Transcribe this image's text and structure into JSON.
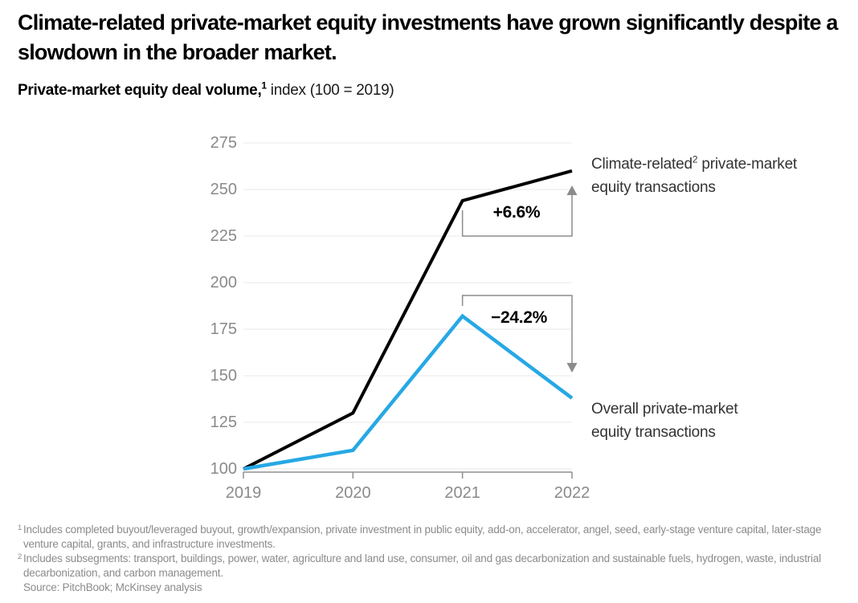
{
  "header": {
    "title": "Climate-related private-market equity investments have grown significantly despite a slowdown in the broader market.",
    "subtitle_bold": "Private-market equity deal volume,",
    "subtitle_sup": "1",
    "subtitle_rest": "index (100 = 2019)"
  },
  "chart_data": {
    "type": "line",
    "title": "Private-market equity deal volume, index (100 = 2019)",
    "categories": [
      "2019",
      "2020",
      "2021",
      "2022"
    ],
    "series": [
      {
        "name": "Climate-related private-market equity transactions",
        "color": "#000000",
        "values": [
          100,
          130,
          244,
          260
        ]
      },
      {
        "name": "Overall private-market equity transactions",
        "color": "#27A8E4",
        "values": [
          100,
          110,
          182,
          138
        ]
      }
    ],
    "ylim": [
      100,
      275
    ],
    "yticks": [
      275,
      250,
      225,
      200,
      175,
      150,
      125,
      100
    ],
    "grid": true,
    "legend_position": "right-side-labels",
    "annotations": [
      {
        "label": "+6.6%",
        "applies_to": "Climate-related private-market equity transactions",
        "from": "2021",
        "to": "2022",
        "direction": "up"
      },
      {
        "label": "−24.2%",
        "applies_to": "Overall private-market equity transactions",
        "from": "2021",
        "to": "2022",
        "direction": "down"
      }
    ]
  },
  "series_labels": {
    "climate_pre": "Climate-related",
    "climate_sup": "2",
    "climate_post": " private-market",
    "climate_line2": "equity transactions",
    "overall_line1": "Overall private-market",
    "overall_line2": "equity transactions"
  },
  "footnotes": [
    {
      "sup": "1",
      "text": "Includes completed buyout/leveraged buyout, growth/expansion, private investment in public equity, add-on, accelerator, angel, seed, early-stage venture capital, later-stage venture capital, grants, and infrastructure investments."
    },
    {
      "sup": "2",
      "text": "Includes subsegments: transport, buildings, power, water, agriculture and land use, consumer, oil and gas decarbonization and sustainable fuels, hydrogen, waste, industrial decarbonization, and carbon management."
    },
    {
      "sup": "",
      "text": "Source: PitchBook; McKinsey analysis"
    }
  ],
  "colors": {
    "climate_line": "#000000",
    "overall_line": "#27A8E4",
    "gridline": "#E8E8E8",
    "axis": "#8F8F8F",
    "bracket_arrow": "#8C8C8C",
    "tick_label": "#8A8A8A",
    "footnote_text": "#8B8B8B"
  }
}
